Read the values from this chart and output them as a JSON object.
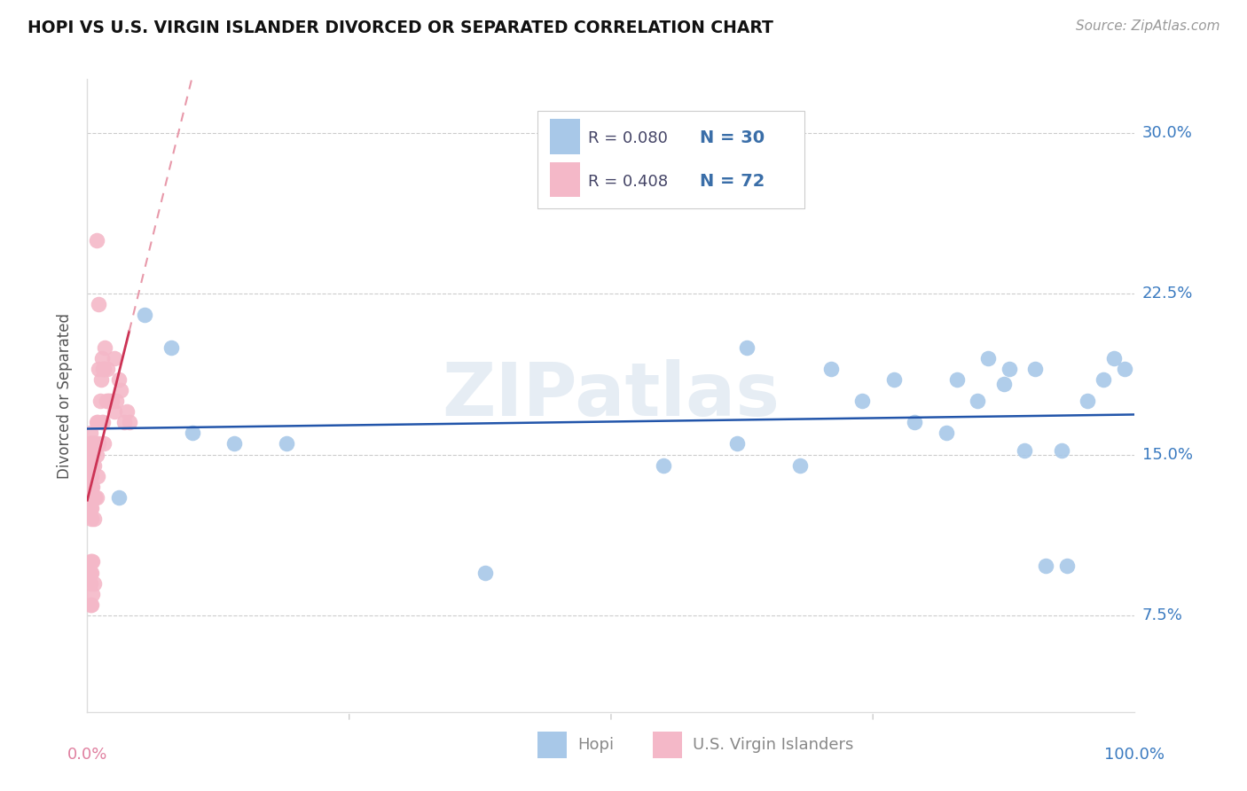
{
  "title": "HOPI VS U.S. VIRGIN ISLANDER DIVORCED OR SEPARATED CORRELATION CHART",
  "source": "Source: ZipAtlas.com",
  "ylabel": "Divorced or Separated",
  "yticks": [
    0.075,
    0.15,
    0.225,
    0.3
  ],
  "ytick_labels": [
    "7.5%",
    "15.0%",
    "22.5%",
    "30.0%"
  ],
  "xlim": [
    0.0,
    1.0
  ],
  "ylim": [
    0.03,
    0.325
  ],
  "hopi_R": 0.08,
  "hopi_N": 30,
  "virgin_R": 0.408,
  "virgin_N": 72,
  "hopi_color": "#a8c8e8",
  "hopi_line_color": "#2255aa",
  "virgin_color": "#f4b8c8",
  "virgin_line_color": "#cc3355",
  "virgin_dash_color": "#e899aa",
  "watermark": "ZIPatlas",
  "hopi_x": [
    0.03,
    0.055,
    0.08,
    0.1,
    0.14,
    0.19,
    0.38,
    0.55,
    0.62,
    0.68,
    0.74,
    0.79,
    0.82,
    0.85,
    0.875,
    0.895,
    0.915,
    0.935,
    0.955,
    0.97,
    0.98,
    0.63,
    0.71,
    0.77,
    0.83,
    0.86,
    0.88,
    0.905,
    0.93,
    0.99
  ],
  "hopi_y": [
    0.13,
    0.215,
    0.2,
    0.16,
    0.155,
    0.155,
    0.095,
    0.145,
    0.155,
    0.145,
    0.175,
    0.165,
    0.16,
    0.175,
    0.183,
    0.152,
    0.098,
    0.098,
    0.175,
    0.185,
    0.195,
    0.2,
    0.19,
    0.185,
    0.185,
    0.195,
    0.19,
    0.19,
    0.152,
    0.19
  ],
  "virgin_x": [
    0.003,
    0.003,
    0.003,
    0.003,
    0.003,
    0.003,
    0.003,
    0.003,
    0.003,
    0.003,
    0.003,
    0.003,
    0.003,
    0.003,
    0.003,
    0.003,
    0.003,
    0.003,
    0.004,
    0.004,
    0.004,
    0.004,
    0.004,
    0.004,
    0.004,
    0.004,
    0.004,
    0.005,
    0.005,
    0.005,
    0.005,
    0.005,
    0.005,
    0.006,
    0.006,
    0.006,
    0.006,
    0.006,
    0.007,
    0.007,
    0.008,
    0.009,
    0.009,
    0.009,
    0.009,
    0.01,
    0.01,
    0.011,
    0.011,
    0.011,
    0.012,
    0.013,
    0.014,
    0.014,
    0.015,
    0.015,
    0.016,
    0.016,
    0.017,
    0.018,
    0.019,
    0.02,
    0.021,
    0.023,
    0.026,
    0.026,
    0.028,
    0.03,
    0.032,
    0.035,
    0.038,
    0.04
  ],
  "virgin_y": [
    0.155,
    0.16,
    0.145,
    0.15,
    0.155,
    0.14,
    0.135,
    0.13,
    0.125,
    0.15,
    0.14,
    0.145,
    0.13,
    0.125,
    0.1,
    0.095,
    0.09,
    0.08,
    0.155,
    0.14,
    0.135,
    0.13,
    0.125,
    0.12,
    0.1,
    0.095,
    0.08,
    0.155,
    0.145,
    0.135,
    0.13,
    0.1,
    0.085,
    0.155,
    0.145,
    0.13,
    0.12,
    0.09,
    0.155,
    0.13,
    0.155,
    0.25,
    0.165,
    0.15,
    0.13,
    0.165,
    0.14,
    0.22,
    0.19,
    0.155,
    0.175,
    0.185,
    0.195,
    0.165,
    0.19,
    0.165,
    0.19,
    0.155,
    0.2,
    0.175,
    0.19,
    0.175,
    0.175,
    0.175,
    0.195,
    0.17,
    0.175,
    0.185,
    0.18,
    0.165,
    0.17,
    0.165
  ],
  "legend_R_color": "#3a6ea8",
  "legend_N_color": "#3a6ea8",
  "bottom_label_hopi": "Hopi",
  "bottom_label_virgin": "U.S. Virgin Islanders",
  "bottom_label_color": "#888888"
}
